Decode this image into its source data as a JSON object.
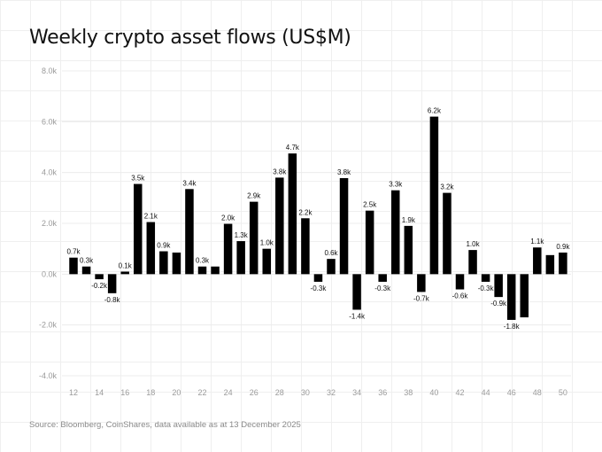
{
  "title": "Weekly crypto asset flows (US$M)",
  "source": "Source: Bloomberg, CoinShares, data available as at 13 December 2025",
  "colors": {
    "bar": "#000000",
    "grid": "#ececec",
    "axis_text": "#9a9a9a",
    "background": "#ffffff"
  },
  "chart_data": {
    "type": "bar",
    "title": "Weekly crypto asset flows (US$M)",
    "xlabel": "",
    "ylabel": "",
    "ylim": [
      -4.0,
      8.0
    ],
    "yticks": [
      8.0,
      6.0,
      4.0,
      2.0,
      0.0,
      -2.0,
      -4.0
    ],
    "ytick_labels": [
      "8.0k",
      "6.0k",
      "4.0k",
      "2.0k",
      "0.0k",
      "-2.0k",
      "-4.0k"
    ],
    "grid": true,
    "categories": [
      12,
      13,
      14,
      15,
      16,
      17,
      18,
      19,
      20,
      21,
      22,
      23,
      24,
      25,
      26,
      27,
      28,
      29,
      30,
      31,
      32,
      33,
      34,
      35,
      36,
      37,
      38,
      39,
      40,
      41,
      42,
      43,
      44,
      45,
      46,
      47,
      48,
      49,
      50
    ],
    "xtick_labels": [
      "12",
      "14",
      "16",
      "18",
      "20",
      "22",
      "24",
      "26",
      "28",
      "30",
      "32",
      "34",
      "36",
      "38",
      "40",
      "42",
      "44",
      "46",
      "48",
      "50"
    ],
    "values": [
      0.65,
      0.3,
      -0.2,
      -0.75,
      0.1,
      3.55,
      2.05,
      0.9,
      0.85,
      3.35,
      0.3,
      0.3,
      1.98,
      1.3,
      2.85,
      1.0,
      3.8,
      4.75,
      2.2,
      -0.3,
      0.6,
      3.78,
      -1.4,
      2.5,
      -0.3,
      3.3,
      1.9,
      -0.7,
      6.2,
      3.2,
      -0.6,
      0.95,
      -0.3,
      -0.9,
      -1.8,
      -1.7,
      1.05,
      0.75,
      0.85
    ],
    "data_labels": [
      "0.7k",
      "0.3k",
      "-0.2k",
      "-0.8k",
      "0.1k",
      "3.5k",
      "2.1k",
      "0.9k",
      "",
      "3.4k",
      "0.3k",
      "",
      "2.0k",
      "1.3k",
      "2.9k",
      "1.0k",
      "3.8k",
      "4.7k",
      "2.2k",
      "-0.3k",
      "0.6k",
      "3.8k",
      "-1.4k",
      "2.5k",
      "-0.3k",
      "3.3k",
      "1.9k",
      "-0.7k",
      "6.2k",
      "3.2k",
      "-0.6k",
      "1.0k",
      "-0.3k",
      "-0.9k",
      "-1.8k",
      "",
      "1.1k",
      "",
      "0.9k"
    ]
  }
}
